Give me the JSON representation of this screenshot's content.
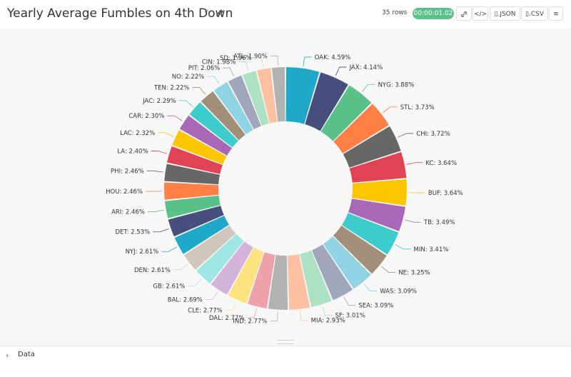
{
  "header": {
    "title": "Yearly Average Fumbles on 4th Down",
    "row_count": "35 rows",
    "timer": "00:00:01.02",
    "json_label": ".JSON",
    "csv_label": ".CSV"
  },
  "footer": {
    "data_label": "Data"
  },
  "chart_data": {
    "type": "pie",
    "donut": true,
    "title": "Yearly Average Fumbles on 4th Down",
    "label_format": "{category}: {percent}%",
    "categories": [
      "OAK",
      "JAX",
      "NYG",
      "STL",
      "CHI",
      "KC",
      "BUF",
      "TB",
      "MIN",
      "NE",
      "WAS",
      "SEA",
      "SF",
      "MIA",
      "IND",
      "DAL",
      "CLE",
      "BAL",
      "GB",
      "DEN",
      "NYJ",
      "DET",
      "ARI",
      "HOU",
      "PHI",
      "LA",
      "LAC",
      "CAR",
      "JAC",
      "TEN",
      "NO",
      "PIT",
      "CIN",
      "SD",
      "ATL"
    ],
    "values": [
      4.59,
      4.14,
      3.88,
      3.73,
      3.72,
      3.64,
      3.64,
      3.49,
      3.41,
      3.25,
      3.09,
      3.09,
      3.01,
      2.93,
      2.77,
      2.77,
      2.77,
      2.69,
      2.61,
      2.61,
      2.61,
      2.53,
      2.46,
      2.46,
      2.46,
      2.4,
      2.32,
      2.3,
      2.29,
      2.22,
      2.22,
      2.06,
      1.98,
      1.96,
      1.9
    ],
    "labels": [
      "OAK: 4.59%",
      "JAX: 4.14%",
      "NYG: 3.88%",
      "STL: 3.73%",
      "CHI: 3.72%",
      "KC: 3.64%",
      "BUF: 3.64%",
      "TB: 3.49%",
      "MIN: 3.41%",
      "NE: 3.25%",
      "WAS: 3.09%",
      "SEA: 3.09%",
      "SF: 3.01%",
      "MIA: 2.93%",
      "IND: 2.77%",
      "DAL: 2.77%",
      "CLE: 2.77%",
      "BAL: 2.69%",
      "GB: 2.61%",
      "DEN: 2.61%",
      "NYJ: 2.61%",
      "DET: 2.53%",
      "ARI: 2.46%",
      "HOU: 2.46%",
      "PHI: 2.46%",
      "LA: 2.40%",
      "LAC: 2.32%",
      "CAR: 2.30%",
      "JAC: 2.29%",
      "TEN: 2.22%",
      "NO: 2.22%",
      "PIT: 2.06%",
      "CIN: 1.98%",
      "SD: 1.96%",
      "ATL: 1.90%"
    ],
    "colors": [
      "#1fa8c9",
      "#454e7c",
      "#5ac189",
      "#ff7f44",
      "#666666",
      "#e04355",
      "#fcc700",
      "#a868b7",
      "#3ccccb",
      "#a38f79",
      "#8fd3e4",
      "#a1a6bd",
      "#acE1c4",
      "#fec0a1",
      "#b2b2b2",
      "#efa1aa",
      "#fde380",
      "#d3b3da",
      "#9ee5e5",
      "#d1c6bc",
      "#1fa8c9",
      "#454e7c",
      "#5ac189",
      "#ff7f44",
      "#666666",
      "#e04355",
      "#fcc700",
      "#a868b7",
      "#3ccccb",
      "#a38f79",
      "#8fd3e4",
      "#a1a6bd",
      "#acE1c4",
      "#fec0a1",
      "#b2b2b2"
    ]
  }
}
